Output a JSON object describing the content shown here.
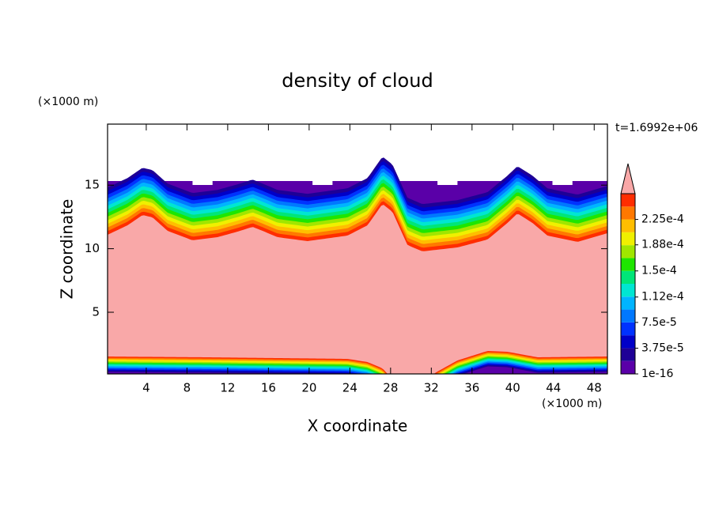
{
  "chart_data": {
    "type": "contour",
    "title": "density of cloud",
    "xlabel": "X coordinate",
    "ylabel": "Z coordinate",
    "x_unit": "(×1000 m)",
    "y_unit": "(×1000 m)",
    "time_label": "t=1.6992e+06",
    "xlim": [
      0.2,
      49.3
    ],
    "xticks": [
      4,
      8,
      12,
      16,
      20,
      24,
      28,
      32,
      36,
      40,
      44,
      48
    ],
    "ylim": [
      0.15,
      19.8
    ],
    "yticks": [
      5,
      10,
      15
    ],
    "colorbar": {
      "clim": [
        0,
        0.0002625
      ],
      "ticks": [
        {
          "value": 1e-16,
          "label": "1e-16"
        },
        {
          "value": 3.75e-05,
          "label": "3.75e-5"
        },
        {
          "value": 7.5e-05,
          "label": "7.5e-5"
        },
        {
          "value": 0.000112,
          "label": "1.12e-4"
        },
        {
          "value": 0.00015,
          "label": "1.5e-4"
        },
        {
          "value": 0.000188,
          "label": "1.88e-4"
        },
        {
          "value": 0.000225,
          "label": "2.25e-4"
        }
      ],
      "colors": [
        "#5a00a8",
        "#1e0096",
        "#0000c8",
        "#0032ff",
        "#0078ff",
        "#00b4ff",
        "#00e6d2",
        "#00e678",
        "#1ee600",
        "#a0e600",
        "#f0f000",
        "#ffbe00",
        "#ff7800",
        "#ff2d00"
      ],
      "over_color": "#f9a8a8"
    }
  }
}
